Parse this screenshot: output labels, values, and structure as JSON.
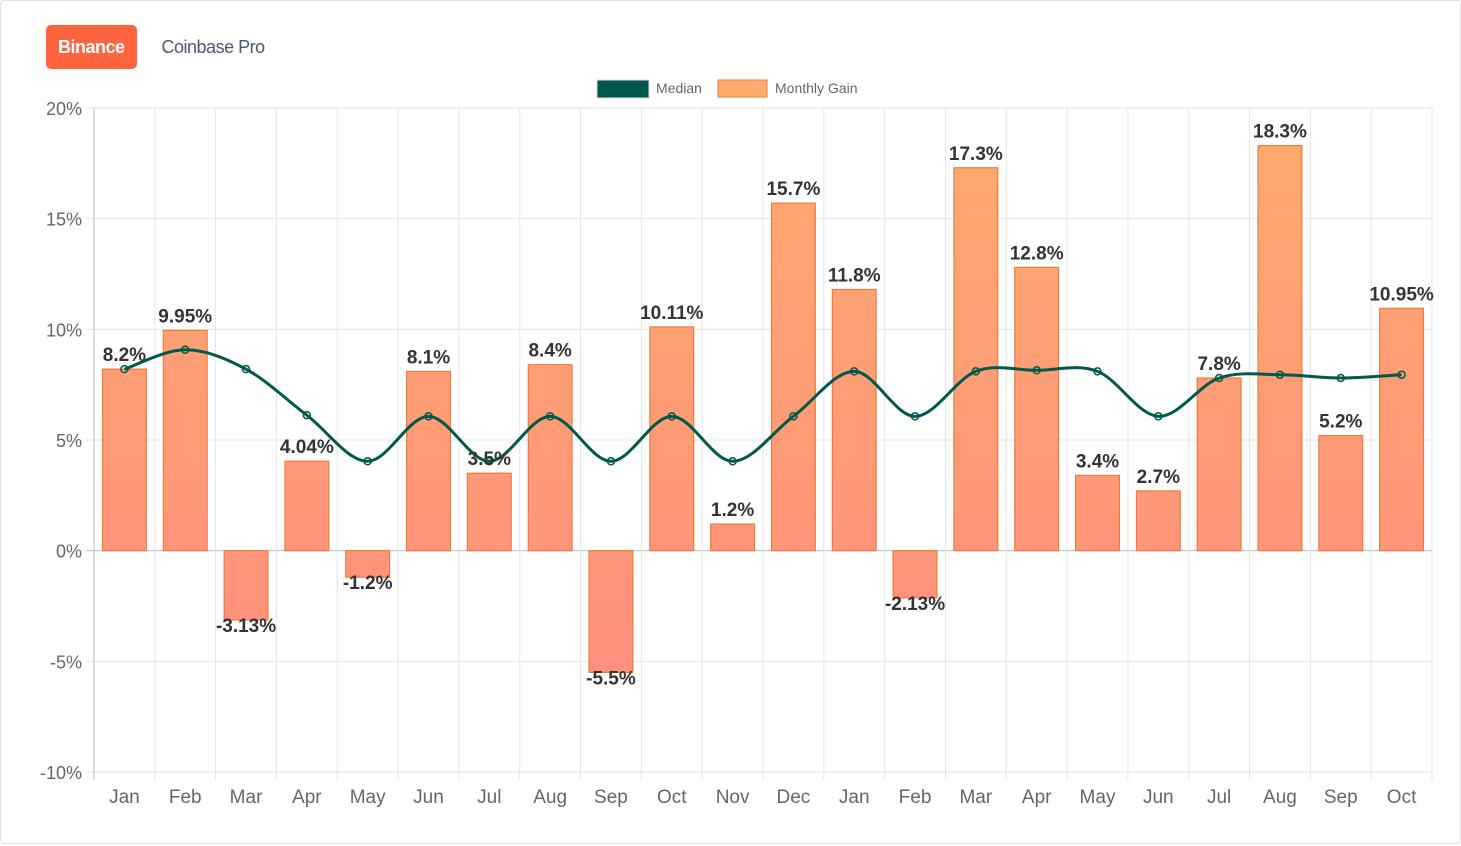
{
  "tabs": [
    {
      "label": "Binance",
      "active": true
    },
    {
      "label": "Coinbase Pro",
      "active": false
    }
  ],
  "colors": {
    "median": "#00594a",
    "bar_top": "#ffab6e",
    "bar_bottom": "#ff8a80",
    "bar_border": "#f07a3a",
    "tab_active": "#ff6440"
  },
  "chart_data": {
    "type": "bar",
    "legend": {
      "placement": "top",
      "entries": [
        "Median",
        "Monthly Gain"
      ]
    },
    "categories": [
      "Jan",
      "Feb",
      "Mar",
      "Apr",
      "May",
      "Jun",
      "Jul",
      "Aug",
      "Sep",
      "Oct",
      "Nov",
      "Dec",
      "Jan",
      "Feb",
      "Mar",
      "Apr",
      "May",
      "Jun",
      "Jul",
      "Aug",
      "Sep",
      "Oct"
    ],
    "series": [
      {
        "name": "Monthly Gain",
        "type": "bar",
        "values": [
          8.2,
          9.95,
          -3.13,
          4.04,
          -1.2,
          8.1,
          3.5,
          8.4,
          -5.5,
          10.11,
          1.2,
          15.7,
          11.8,
          -2.13,
          17.3,
          12.8,
          3.4,
          2.7,
          7.8,
          18.3,
          5.2,
          10.95
        ],
        "labels": [
          "8.2%",
          "9.95%",
          "-3.13%",
          "4.04%",
          "-1.2%",
          "8.1%",
          "3.5%",
          "8.4%",
          "-5.5%",
          "10.11%",
          "1.2%",
          "15.7%",
          "11.8%",
          "-2.13%",
          "17.3%",
          "12.8%",
          "3.4%",
          "2.7%",
          "7.8%",
          "18.3%",
          "5.2%",
          "10.95%"
        ]
      },
      {
        "name": "Median",
        "type": "line",
        "values": [
          8.2,
          9.075,
          8.2,
          6.12,
          4.04,
          6.07,
          4.04,
          6.07,
          4.04,
          6.07,
          4.04,
          6.07,
          8.1,
          6.07,
          8.1,
          8.15,
          8.1,
          6.07,
          7.8,
          7.95,
          7.8,
          7.95
        ]
      }
    ],
    "ylim": [
      -10,
      20
    ],
    "yticks": [
      20,
      15,
      10,
      5,
      0,
      -5,
      -10
    ],
    "ytick_labels": [
      "20%",
      "15%",
      "10%",
      "5%",
      "0%",
      "-5%",
      "-10%"
    ],
    "grid": true
  }
}
